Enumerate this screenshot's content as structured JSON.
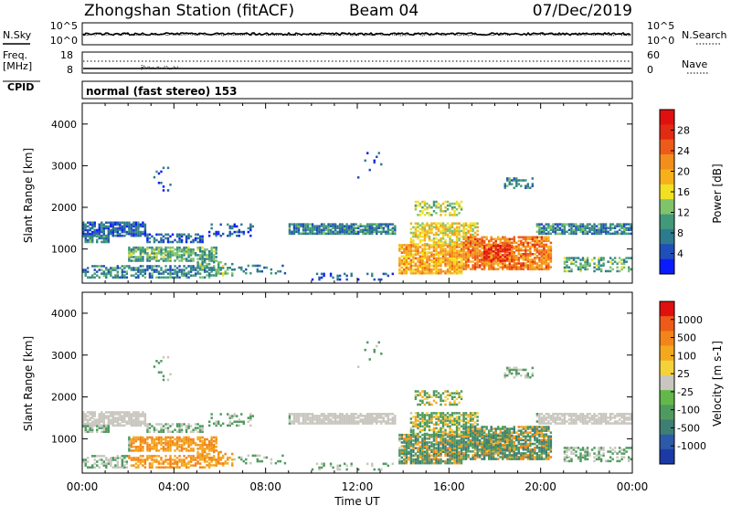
{
  "header": {
    "station": "Zhongshan Station (fitACF)",
    "beam": "Beam 04",
    "date": "07/Dec/2019",
    "mode": "normal (fast stereo) 153"
  },
  "side_labels": {
    "nsky": "N.Sky",
    "nsearch": "N.Search",
    "freq": "Freq.",
    "freq_unit": "[MHz]",
    "cpid": "CPID",
    "nave": "Nave"
  },
  "top_ticks": {
    "noise_hi": "10^5",
    "noise_lo": "10^0",
    "freq_hi": "18",
    "freq_lo": "8",
    "nave_hi": "60",
    "nave_lo": "0"
  },
  "chart_data": [
    {
      "type": "heatmap",
      "title": "Power",
      "ylabel": "Slant Range [km]",
      "yticks": [
        "1000",
        "2000",
        "3000",
        "4000"
      ],
      "ylim": [
        180,
        4500
      ],
      "xticks": [
        "00:00",
        "04:00",
        "08:00",
        "12:00",
        "16:00",
        "20:00",
        "00:00"
      ],
      "xlim_hours": [
        0,
        24
      ],
      "colorbar": {
        "label": "Power [dB]",
        "ticks": [
          "4",
          "8",
          "12",
          "16",
          "20",
          "24",
          "28"
        ],
        "colors": [
          "#0a1cff",
          "#1f4fb8",
          "#2e7a8e",
          "#41997a",
          "#7fc46a",
          "#f2e022",
          "#f6b01a",
          "#f28e1c",
          "#ee5a18",
          "#e32a12",
          "#e01010"
        ]
      }
    },
    {
      "type": "heatmap",
      "title": "Velocity",
      "ylabel": "Slant Range [km]",
      "yticks": [
        "1000",
        "2000",
        "3000",
        "4000"
      ],
      "ylim": [
        180,
        4500
      ],
      "xticks": [
        "00:00",
        "04:00",
        "08:00",
        "12:00",
        "16:00",
        "20:00",
        "00:00"
      ],
      "xlim_hours": [
        0,
        24
      ],
      "xlabel": "Time UT",
      "colorbar": {
        "label": "Velocity [m s-1]",
        "ticks": [
          "1000",
          "500",
          "100",
          "25",
          "-25",
          "-100",
          "-500",
          "-1000"
        ],
        "colors": [
          "#1c3aa6",
          "#2d5aa8",
          "#3e7f73",
          "#4f9a5e",
          "#62b84a",
          "#c8c6be",
          "#f4d23a",
          "#f4a81e",
          "#f2841a",
          "#ee5a18",
          "#e01010"
        ]
      }
    }
  ]
}
